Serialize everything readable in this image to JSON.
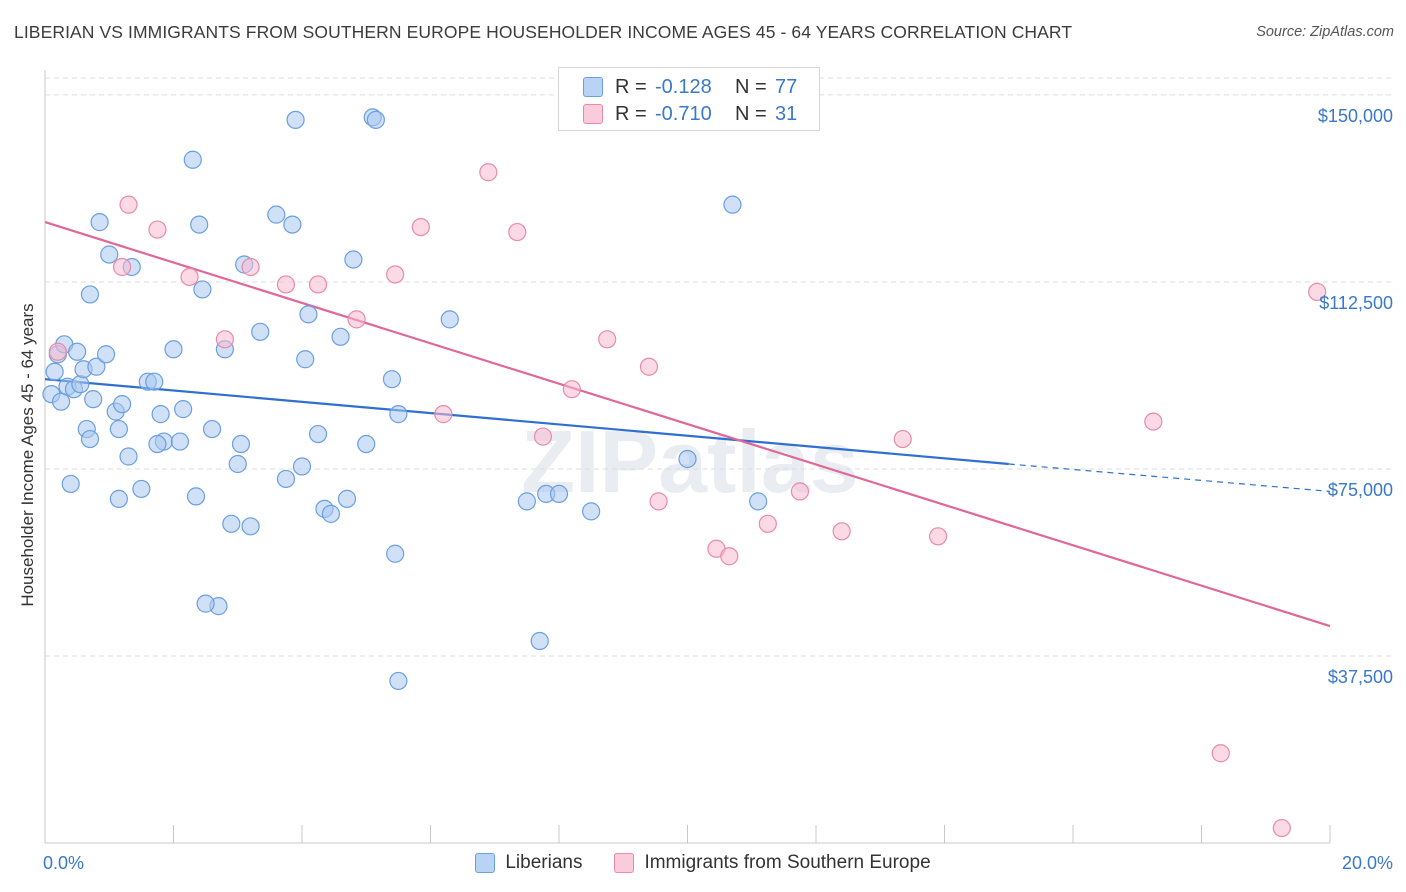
{
  "header": {
    "title": "LIBERIAN VS IMMIGRANTS FROM SOUTHERN EUROPE HOUSEHOLDER INCOME AGES 45 - 64 YEARS CORRELATION CHART",
    "source": "Source: ZipAtlas.com"
  },
  "legend": {
    "rows": [
      {
        "r_label": "R =",
        "r_value": "-0.128",
        "n_label": "N =",
        "n_value": "77"
      },
      {
        "r_label": "R =",
        "r_value": "-0.710",
        "n_label": "N =",
        "n_value": "31"
      }
    ],
    "series_labels": [
      "Liberians",
      "Immigrants from Southern Europe"
    ]
  },
  "colors": {
    "blue_fill": "#a9c8f0",
    "blue_stroke": "#6a9fe0",
    "blue_line": "#2e6fd0",
    "pink_fill": "#f7bcd0",
    "pink_stroke": "#e98aab",
    "pink_line": "#e0679a",
    "axis_text": "#3a78c8",
    "grid": "#dedede"
  },
  "chart_data": {
    "type": "scatter",
    "title": "LIBERIAN VS IMMIGRANTS FROM SOUTHERN EUROPE HOUSEHOLDER INCOME AGES 45 - 64 YEARS CORRELATION CHART",
    "xlabel": "",
    "ylabel": "Householder Income Ages 45 - 64 years",
    "xlim": [
      0,
      20
    ],
    "ylim": [
      0,
      155000
    ],
    "x_tick_labels": [
      "0.0%",
      "20.0%"
    ],
    "y_ticks": [
      37500,
      75000,
      112500,
      150000
    ],
    "y_tick_labels": [
      "$37,500",
      "$75,000",
      "$112,500",
      "$150,000"
    ],
    "watermark": "ZIPatlas",
    "series": [
      {
        "name": "Liberians",
        "r": -0.128,
        "n": 77,
        "trend": {
          "x0": 0.0,
          "y0": 93000,
          "x1": 15.0,
          "y1": 76000,
          "dashed_to_x": 20.0,
          "dashed_to_y": 70500
        },
        "points": [
          [
            0.1,
            90000
          ],
          [
            0.15,
            94500
          ],
          [
            0.2,
            98000
          ],
          [
            0.25,
            88500
          ],
          [
            0.3,
            100000
          ],
          [
            0.35,
            91500
          ],
          [
            0.45,
            91000
          ],
          [
            0.5,
            98500
          ],
          [
            0.55,
            92000
          ],
          [
            0.6,
            95000
          ],
          [
            0.65,
            83000
          ],
          [
            0.7,
            81000
          ],
          [
            0.75,
            89000
          ],
          [
            0.8,
            95500
          ],
          [
            0.85,
            124500
          ],
          [
            0.95,
            98000
          ],
          [
            1.0,
            118000
          ],
          [
            1.1,
            86500
          ],
          [
            1.15,
            83000
          ],
          [
            1.2,
            88000
          ],
          [
            1.3,
            77500
          ],
          [
            1.5,
            71000
          ],
          [
            1.6,
            92500
          ],
          [
            1.7,
            92500
          ],
          [
            1.8,
            86000
          ],
          [
            1.85,
            80500
          ],
          [
            2.0,
            99000
          ],
          [
            2.1,
            80500
          ],
          [
            2.15,
            87000
          ],
          [
            2.3,
            137000
          ],
          [
            2.35,
            69500
          ],
          [
            2.4,
            124000
          ],
          [
            2.45,
            111000
          ],
          [
            2.6,
            83000
          ],
          [
            2.8,
            99000
          ],
          [
            2.9,
            64000
          ],
          [
            3.0,
            76000
          ],
          [
            3.05,
            80000
          ],
          [
            3.1,
            116000
          ],
          [
            3.2,
            63500
          ],
          [
            3.35,
            102500
          ],
          [
            3.6,
            126000
          ],
          [
            3.75,
            73000
          ],
          [
            3.85,
            124000
          ],
          [
            3.9,
            145000
          ],
          [
            4.0,
            75500
          ],
          [
            4.05,
            97000
          ],
          [
            4.1,
            106000
          ],
          [
            4.25,
            82000
          ],
          [
            4.35,
            67000
          ],
          [
            4.45,
            66000
          ],
          [
            4.6,
            101500
          ],
          [
            4.7,
            69000
          ],
          [
            4.8,
            117000
          ],
          [
            5.1,
            145500
          ],
          [
            5.15,
            145000
          ],
          [
            5.4,
            93000
          ],
          [
            5.45,
            58000
          ],
          [
            5.5,
            86000
          ],
          [
            5.5,
            32500
          ],
          [
            6.3,
            105000
          ],
          [
            7.5,
            68500
          ],
          [
            7.7,
            40500
          ],
          [
            7.8,
            70000
          ],
          [
            8.0,
            70000
          ],
          [
            8.5,
            66500
          ],
          [
            10.0,
            77000
          ],
          [
            10.7,
            128000
          ],
          [
            11.1,
            68500
          ],
          [
            1.35,
            115500
          ],
          [
            0.7,
            110000
          ],
          [
            1.15,
            69000
          ],
          [
            1.75,
            80000
          ],
          [
            2.7,
            47500
          ],
          [
            2.5,
            48000
          ],
          [
            5.0,
            80000
          ],
          [
            0.4,
            72000
          ]
        ]
      },
      {
        "name": "Immigrants from Southern Europe",
        "r": -0.71,
        "n": 31,
        "trend": {
          "x0": 0.0,
          "y0": 124500,
          "x1": 20.0,
          "y1": 43500
        },
        "points": [
          [
            0.2,
            98500
          ],
          [
            1.2,
            115500
          ],
          [
            1.3,
            128000
          ],
          [
            1.75,
            123000
          ],
          [
            2.25,
            113500
          ],
          [
            2.8,
            101000
          ],
          [
            3.2,
            115500
          ],
          [
            3.75,
            112000
          ],
          [
            4.25,
            112000
          ],
          [
            4.85,
            105000
          ],
          [
            5.45,
            114000
          ],
          [
            5.85,
            123500
          ],
          [
            6.2,
            86000
          ],
          [
            6.9,
            134500
          ],
          [
            7.35,
            122500
          ],
          [
            7.75,
            81500
          ],
          [
            8.2,
            91000
          ],
          [
            8.75,
            101000
          ],
          [
            9.4,
            95500
          ],
          [
            9.55,
            68500
          ],
          [
            10.45,
            59000
          ],
          [
            10.65,
            57500
          ],
          [
            11.25,
            64000
          ],
          [
            11.75,
            70500
          ],
          [
            12.4,
            62500
          ],
          [
            13.35,
            81000
          ],
          [
            13.9,
            61500
          ],
          [
            17.25,
            84500
          ],
          [
            18.3,
            18000
          ],
          [
            19.25,
            3000
          ],
          [
            19.8,
            110500
          ]
        ]
      }
    ]
  }
}
